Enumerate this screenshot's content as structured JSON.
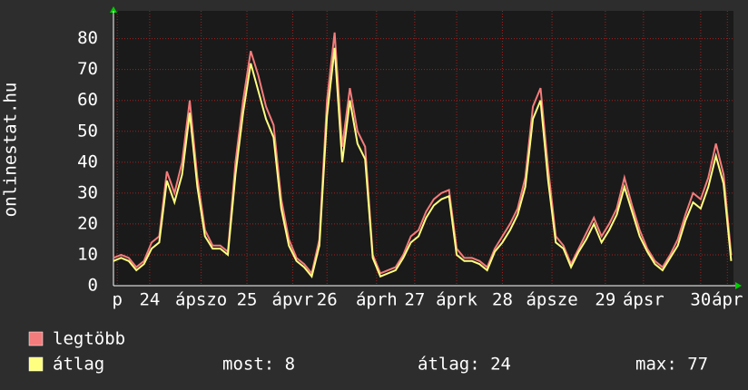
{
  "chart_data": {
    "type": "line",
    "ylabel": "onlinestat.hu",
    "x": [
      0,
      2,
      4,
      6,
      8,
      10,
      12,
      14,
      16,
      18,
      20,
      22,
      24,
      26,
      28,
      30,
      32,
      34,
      36,
      38,
      40,
      42,
      44,
      46,
      48,
      50,
      52,
      54,
      56,
      58,
      60,
      62,
      64,
      66,
      68,
      70,
      72,
      74,
      76,
      78,
      80,
      82,
      84,
      86,
      88,
      90,
      92,
      94,
      96,
      98,
      100,
      102,
      104,
      106,
      108,
      110,
      112,
      114,
      116,
      118,
      120,
      122,
      124,
      126,
      128,
      130,
      132,
      134,
      136,
      138,
      140,
      142,
      144,
      146,
      148,
      150,
      152,
      154,
      156,
      158,
      160,
      162
    ],
    "series": [
      {
        "name": "legtöbb",
        "color": "#f47c7c",
        "values": [
          9,
          10,
          9,
          6,
          8,
          14,
          16,
          37,
          30,
          40,
          60,
          35,
          18,
          13,
          13,
          11,
          40,
          60,
          76,
          68,
          58,
          52,
          28,
          15,
          9,
          7,
          4,
          15,
          60,
          82,
          45,
          64,
          50,
          45,
          10,
          4,
          5,
          6,
          10,
          16,
          18,
          24,
          28,
          30,
          31,
          12,
          9,
          9,
          8,
          6,
          12,
          16,
          20,
          25,
          35,
          58,
          64,
          38,
          16,
          13,
          7,
          12,
          17,
          22,
          16,
          20,
          25,
          35,
          26,
          18,
          12,
          8,
          6,
          10,
          15,
          23,
          30,
          28,
          35,
          46,
          36,
          10
        ]
      },
      {
        "name": "átlag",
        "color": "#ffff80",
        "values": [
          8,
          9,
          8,
          5,
          7,
          12,
          14,
          34,
          27,
          36,
          56,
          32,
          16,
          12,
          12,
          10,
          36,
          56,
          72,
          63,
          54,
          48,
          25,
          13,
          8,
          6,
          3,
          13,
          55,
          77,
          40,
          60,
          46,
          41,
          9,
          3,
          4,
          5,
          9,
          14,
          16,
          22,
          26,
          28,
          29,
          10,
          8,
          8,
          7,
          5,
          11,
          14,
          18,
          23,
          32,
          54,
          60,
          34,
          14,
          12,
          6,
          11,
          15,
          20,
          14,
          18,
          23,
          32,
          24,
          16,
          11,
          7,
          5,
          9,
          13,
          21,
          27,
          25,
          32,
          42,
          33,
          8
        ]
      }
    ],
    "xlim": [
      0,
      162.6
    ],
    "xticks": [
      {
        "value": 1,
        "label": "p"
      },
      {
        "value": 9.5,
        "label": "24"
      },
      {
        "value": 23,
        "label": "ápszo"
      },
      {
        "value": 35,
        "label": "25"
      },
      {
        "value": 47,
        "label": "ápvr"
      },
      {
        "value": 56,
        "label": "26"
      },
      {
        "value": 69,
        "label": "áprh"
      },
      {
        "value": 79,
        "label": "27"
      },
      {
        "value": 90,
        "label": "áprk"
      },
      {
        "value": 102,
        "label": "28"
      },
      {
        "value": 115,
        "label": "ápsze"
      },
      {
        "value": 129,
        "label": "29"
      },
      {
        "value": 139,
        "label": "ápsr"
      },
      {
        "value": 154,
        "label": "30"
      },
      {
        "value": 161,
        "label": "ápr"
      }
    ],
    "ylim": [
      0,
      89
    ],
    "yticks": [
      0,
      10,
      20,
      30,
      40,
      50,
      60,
      70,
      80
    ],
    "grid": true,
    "stats": [
      "most: 8",
      "átlag: 24",
      "max: 77"
    ]
  }
}
